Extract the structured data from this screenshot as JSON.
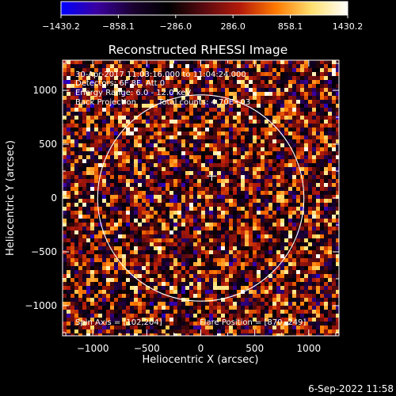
{
  "chart_data": {
    "type": "heatmap",
    "title": "Reconstructed RHESSI Image",
    "xlabel": "Heliocentric X (arcsec)",
    "ylabel": "Heliocentric Y (arcsec)",
    "xlim": [
      -1280,
      1280
    ],
    "ylim": [
      -1280,
      1280
    ],
    "x_ticks": [
      -1000,
      -500,
      0,
      500,
      1000
    ],
    "y_ticks": [
      -1000,
      -500,
      0,
      500,
      1000
    ],
    "x_tick_labels": [
      "−1000",
      "−500",
      "0",
      "500",
      "1000"
    ],
    "y_tick_labels": [
      "−1000",
      "−500",
      "0",
      "500",
      "1000"
    ],
    "colorbar": {
      "range": [
        -1430.2,
        1430.2
      ],
      "tick_values": [
        -1430.2,
        -858.1,
        -286.0,
        286.0,
        858.1,
        1430.2
      ],
      "tick_labels": [
        "−1430.2",
        "−858.1",
        "−286.0",
        "286.0",
        "858.1",
        "1430.2"
      ],
      "colormap": [
        "#0000ff",
        "#3a00a0",
        "#1a0030",
        "#000000",
        "#5a0a10",
        "#b41a0a",
        "#ff7a00",
        "#ffe070",
        "#ffffff"
      ]
    },
    "annotations": [
      "30-Apr-2017 11:03:16.000 to 11:04:24.000",
      "Detectors: 6F 8F, Att 0",
      "Energy Range: 6.0 - 12.0 keV",
      "Back Projection",
      "Total counts: 4.70E+03"
    ],
    "spin_axis_label": "Spin Axis = [102,204]",
    "flare_position_label": "Flare Position = [870,-249]",
    "solar_limb_radius_arcsec": 955,
    "center_marker": [
      102,
      204
    ],
    "background_color": "#000000",
    "limb_color": "#ffffff"
  },
  "footer": {
    "timestamp": "6-Sep-2022 11:58"
  }
}
